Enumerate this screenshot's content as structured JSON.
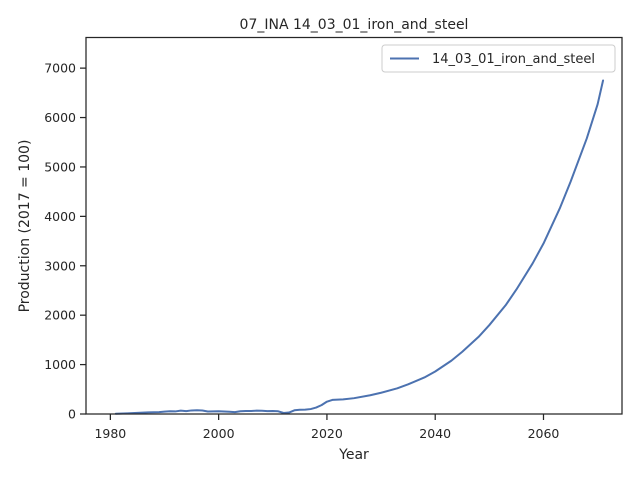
{
  "chart_data": {
    "type": "line",
    "title": "07_INA 14_03_01_iron_and_steel",
    "xlabel": "Year",
    "ylabel": "Production (2017 = 100)",
    "xlim": [
      1975.5,
      2074.5
    ],
    "ylim": [
      0,
      7620
    ],
    "xticks": [
      1980,
      2000,
      2020,
      2040,
      2060
    ],
    "yticks": [
      0,
      1000,
      2000,
      3000,
      4000,
      5000,
      6000,
      7000
    ],
    "grid": false,
    "legend": {
      "placement": "top-right",
      "entries": [
        "14_03_01_iron_and_steel"
      ]
    },
    "colors": {
      "series": "#4c72b0",
      "axes": "#262626"
    },
    "series": [
      {
        "name": "14_03_01_iron_and_steel",
        "x": [
          1981,
          1983,
          1985,
          1987,
          1989,
          1990,
          1991,
          1992,
          1993,
          1994,
          1995,
          1996,
          1997,
          1998,
          1999,
          2000,
          2001,
          2002,
          2003,
          2004,
          2005,
          2006,
          2007,
          2008,
          2009,
          2010,
          2011,
          2012,
          2013,
          2014,
          2015,
          2016,
          2017,
          2018,
          2019,
          2020,
          2021,
          2022,
          2023,
          2025,
          2028,
          2030,
          2033,
          2035,
          2038,
          2040,
          2043,
          2045,
          2048,
          2050,
          2053,
          2055,
          2058,
          2060,
          2063,
          2065,
          2068,
          2070,
          2071
        ],
        "y": [
          5,
          12,
          22,
          32,
          38,
          48,
          55,
          52,
          68,
          58,
          72,
          75,
          70,
          50,
          52,
          55,
          50,
          45,
          38,
          55,
          62,
          60,
          68,
          65,
          58,
          60,
          55,
          20,
          30,
          75,
          85,
          88,
          100,
          130,
          180,
          250,
          285,
          290,
          295,
          320,
          380,
          430,
          520,
          600,
          740,
          860,
          1080,
          1260,
          1560,
          1800,
          2200,
          2520,
          3050,
          3450,
          4160,
          4700,
          5580,
          6270,
          6750
        ]
      }
    ]
  }
}
